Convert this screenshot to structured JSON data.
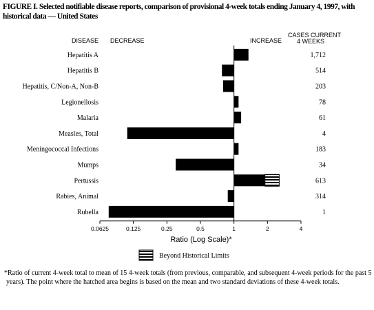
{
  "figure": {
    "title": "FIGURE I. Selected notifiable disease reports, comparison of provisional 4-week totals ending January 4, 1997, with historical data — United States",
    "footnote": "*Ratio of current 4-week total to mean of 15 4-week totals (from previous, comparable, and subsequent 4-week periods for the past 5 years). The point where the hatched area begins is based on the mean and two standard deviations of these 4-week totals."
  },
  "chart_data": {
    "type": "bar",
    "orientation": "horizontal",
    "scale": "log2",
    "headers": {
      "disease": "DISEASE",
      "decrease": "DECREASE",
      "increase": "INCREASE",
      "cases_line1": "CASES CURRENT",
      "cases_line2": "4 WEEKS"
    },
    "categories": [
      "Hepatitis A",
      "Hepatitis B",
      "Hepatitis, C/Non-A, Non-B",
      "Legionellosis",
      "Malaria",
      "Measles, Total",
      "Meningococcal Infections",
      "Mumps",
      "Pertussis",
      "Rabies, Animal",
      "Rubella"
    ],
    "values": [
      1.35,
      0.78,
      0.8,
      1.1,
      1.16,
      0.11,
      1.1,
      0.3,
      2.55,
      0.88,
      0.075
    ],
    "beyond_limit_from": [
      null,
      null,
      null,
      null,
      null,
      null,
      null,
      null,
      1.9,
      null,
      null
    ],
    "cases": [
      "1,712",
      "514",
      "203",
      "78",
      "61",
      "4",
      "183",
      "34",
      "613",
      "314",
      "1"
    ],
    "xticks": [
      0.0625,
      0.125,
      0.25,
      0.5,
      1,
      2,
      4
    ],
    "xtick_labels": [
      "0.0625",
      "0.125",
      "0.25",
      "0.5",
      "1",
      "2",
      "4"
    ],
    "xlim": [
      0.0625,
      4
    ],
    "xlabel": "Ratio (Log Scale)*",
    "legend": {
      "label": "Beyond Historical Limits",
      "position": "bottom"
    }
  }
}
